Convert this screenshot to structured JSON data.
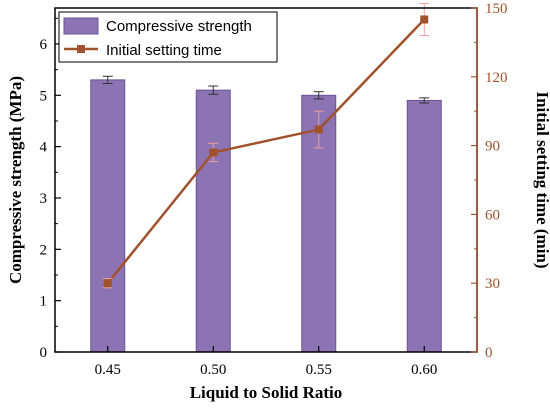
{
  "chart_data": {
    "type": "bar",
    "categories": [
      "0.45",
      "0.50",
      "0.55",
      "0.60"
    ],
    "xlabel": "Liquid to Solid Ratio",
    "ylabel": "Compressive strength (MPa)",
    "ylabel_right": "Initial setting time (min)",
    "ylim": [
      0,
      6.7
    ],
    "ylim_right": [
      0,
      150
    ],
    "yticks": [
      0,
      1,
      2,
      3,
      4,
      5,
      6
    ],
    "yticks_right": [
      0,
      30,
      60,
      90,
      120,
      150
    ],
    "legend_position": "top-left",
    "series": [
      {
        "name": "Compressive strength",
        "type": "bar",
        "axis": "left",
        "values": [
          5.3,
          5.1,
          5.0,
          4.9
        ],
        "errors": [
          0.07,
          0.08,
          0.07,
          0.05
        ],
        "color": "#8c73b4"
      },
      {
        "name": "Initial setting time",
        "type": "line",
        "axis": "right",
        "values": [
          30,
          87,
          97,
          145
        ],
        "errors": [
          2,
          4,
          8,
          7
        ],
        "color": "#a0522d"
      }
    ]
  }
}
